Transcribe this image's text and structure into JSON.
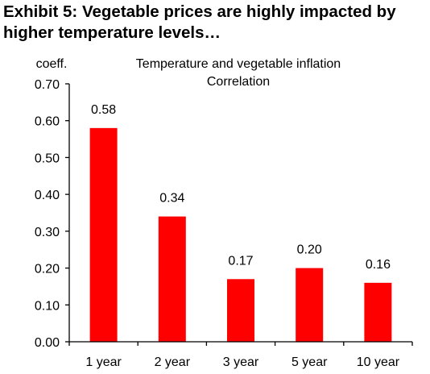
{
  "header": {
    "title": "Exhibit 5: Vegetable prices are highly impacted by higher temperature levels…"
  },
  "chart_data": {
    "type": "bar",
    "title": "Temperature and vegetable inflation",
    "subtitle": "Correlation",
    "ylabel": "coeff.",
    "xlabel": "",
    "categories": [
      "1 year",
      "2 year",
      "3 year",
      "5 year",
      "10 year"
    ],
    "values": [
      0.58,
      0.34,
      0.17,
      0.2,
      0.16
    ],
    "data_labels": [
      "0.58",
      "0.34",
      "0.17",
      "0.20",
      "0.16"
    ],
    "ylim": [
      0,
      0.7
    ],
    "yticks": [
      0.0,
      0.1,
      0.2,
      0.3,
      0.4,
      0.5,
      0.6,
      0.7
    ],
    "ytick_labels": [
      "0.00",
      "0.10",
      "0.20",
      "0.30",
      "0.40",
      "0.50",
      "0.60",
      "0.70"
    ],
    "grid": false,
    "legend": "none",
    "bar_color": "#ff0000"
  }
}
